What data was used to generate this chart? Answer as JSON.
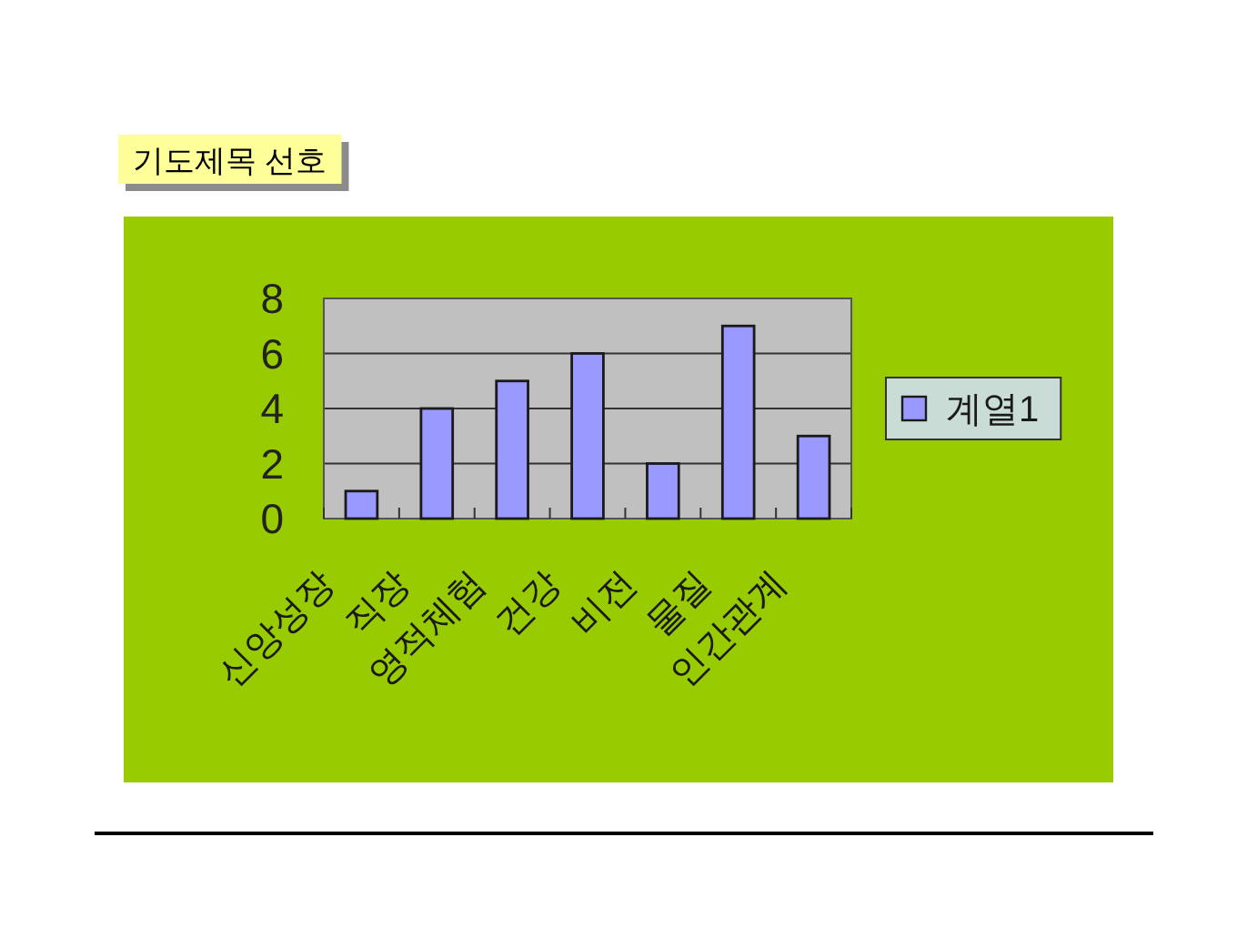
{
  "chart_data": {
    "type": "bar",
    "title": "기도제목 선호",
    "categories": [
      "신앙성장",
      "직장",
      "영적체험",
      "건강",
      "비전",
      "물질",
      "인간관계"
    ],
    "series": [
      {
        "name": "계열1",
        "color": "#9999ff",
        "values": [
          1,
          4,
          5,
          6,
          2,
          7,
          3
        ]
      }
    ],
    "ylim": [
      0,
      8
    ],
    "yticks": [
      0,
      2,
      4,
      6,
      8
    ],
    "grid": "y",
    "legend": "right"
  }
}
